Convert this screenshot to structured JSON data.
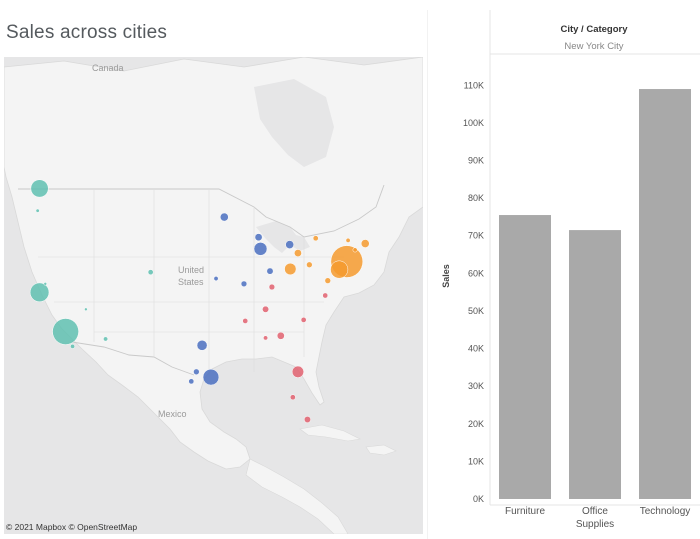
{
  "dashboard": {
    "title": "Sales across cities",
    "map_labels": {
      "canada": "Canada",
      "united_states_line1": "United",
      "united_states_line2": "States",
      "mexico": "Mexico"
    },
    "copyright": "© 2021 Mapbox © OpenStreetMap"
  },
  "colors": {
    "west": "#5fbfb0",
    "central": "#4a6fbf",
    "south": "#e0606e",
    "east": "#f59a2e",
    "bar": "#a9a9a9",
    "land": "#f4f4f4",
    "water": "#e6e6e7",
    "grid": "#eeeeee"
  },
  "chart_data": {
    "type": "bar",
    "header_title": "City / Category",
    "header_subtitle": "New York City",
    "categories": [
      "Furniture",
      "Office Supplies",
      "Technology"
    ],
    "category_label_lines": [
      [
        "Furniture"
      ],
      [
        "Office",
        "Supplies"
      ],
      [
        "Technology"
      ]
    ],
    "values": [
      75500,
      71500,
      109000
    ],
    "ylabel": "Sales",
    "ylim": [
      0,
      113000
    ],
    "ticks": [
      0,
      10000,
      20000,
      30000,
      40000,
      50000,
      60000,
      70000,
      80000,
      90000,
      100000,
      110000
    ],
    "tick_labels": [
      "0K",
      "10K",
      "20K",
      "30K",
      "40K",
      "50K",
      "60K",
      "70K",
      "80K",
      "90K",
      "100K",
      "110K"
    ],
    "grid": false,
    "legend": "none"
  },
  "map_data": {
    "type": "bubble-map",
    "marks": [
      {
        "region": "west",
        "lon": -122.4,
        "lat": 47.6,
        "size": 6.0
      },
      {
        "region": "west",
        "lon": -122.4,
        "lat": 37.8,
        "size": 6.5
      },
      {
        "region": "west",
        "lon": -118.3,
        "lat": 34.1,
        "size": 9.0
      },
      {
        "region": "west",
        "lon": -112.0,
        "lat": 33.4,
        "size": 1.5
      },
      {
        "region": "west",
        "lon": -104.9,
        "lat": 39.7,
        "size": 1.8
      },
      {
        "region": "west",
        "lon": -117.2,
        "lat": 32.7,
        "size": 1.5
      },
      {
        "region": "west",
        "lon": -122.7,
        "lat": 45.5,
        "size": 1.2
      },
      {
        "region": "west",
        "lon": -121.5,
        "lat": 38.6,
        "size": 1.0
      },
      {
        "region": "west",
        "lon": -115.1,
        "lat": 36.2,
        "size": 1.0
      },
      {
        "region": "central",
        "lon": -87.6,
        "lat": 41.9,
        "size": 4.5
      },
      {
        "region": "central",
        "lon": -95.4,
        "lat": 29.8,
        "size": 5.5
      },
      {
        "region": "central",
        "lon": -96.8,
        "lat": 32.8,
        "size": 3.5
      },
      {
        "region": "central",
        "lon": -93.3,
        "lat": 44.9,
        "size": 2.8
      },
      {
        "region": "central",
        "lon": -83.0,
        "lat": 42.3,
        "size": 2.8
      },
      {
        "region": "central",
        "lon": -86.1,
        "lat": 39.8,
        "size": 2.2
      },
      {
        "region": "central",
        "lon": -87.9,
        "lat": 43.0,
        "size": 2.5
      },
      {
        "region": "central",
        "lon": -90.2,
        "lat": 38.6,
        "size": 2.0
      },
      {
        "region": "central",
        "lon": -97.7,
        "lat": 30.3,
        "size": 2.0
      },
      {
        "region": "central",
        "lon": -98.5,
        "lat": 29.4,
        "size": 1.8
      },
      {
        "region": "central",
        "lon": -94.6,
        "lat": 39.1,
        "size": 1.5
      },
      {
        "region": "south",
        "lon": -86.8,
        "lat": 36.2,
        "size": 2.2
      },
      {
        "region": "south",
        "lon": -84.4,
        "lat": 33.7,
        "size": 2.5
      },
      {
        "region": "south",
        "lon": -80.8,
        "lat": 35.2,
        "size": 1.8
      },
      {
        "region": "south",
        "lon": -81.7,
        "lat": 30.3,
        "size": 4.0
      },
      {
        "region": "south",
        "lon": -80.2,
        "lat": 25.8,
        "size": 2.2
      },
      {
        "region": "south",
        "lon": -82.5,
        "lat": 27.9,
        "size": 1.8
      },
      {
        "region": "south",
        "lon": -90.0,
        "lat": 35.1,
        "size": 1.8
      },
      {
        "region": "south",
        "lon": -85.8,
        "lat": 38.3,
        "size": 2.0
      },
      {
        "region": "south",
        "lon": -77.4,
        "lat": 37.5,
        "size": 1.8
      },
      {
        "region": "south",
        "lon": -86.8,
        "lat": 33.5,
        "size": 1.5
      },
      {
        "region": "east",
        "lon": -74.0,
        "lat": 40.7,
        "size": 11.0
      },
      {
        "region": "east",
        "lon": -75.2,
        "lat": 39.95,
        "size": 6.0
      },
      {
        "region": "east",
        "lon": -82.9,
        "lat": 40.0,
        "size": 4.0
      },
      {
        "region": "east",
        "lon": -71.1,
        "lat": 42.4,
        "size": 2.8
      },
      {
        "region": "east",
        "lon": -81.7,
        "lat": 41.5,
        "size": 2.5
      },
      {
        "region": "east",
        "lon": -79.9,
        "lat": 40.4,
        "size": 2.0
      },
      {
        "region": "east",
        "lon": -77.0,
        "lat": 38.9,
        "size": 2.0
      },
      {
        "region": "east",
        "lon": -78.9,
        "lat": 42.9,
        "size": 1.8
      },
      {
        "region": "east",
        "lon": -73.8,
        "lat": 42.7,
        "size": 1.5
      },
      {
        "region": "east",
        "lon": -72.7,
        "lat": 41.8,
        "size": 1.5
      }
    ]
  }
}
